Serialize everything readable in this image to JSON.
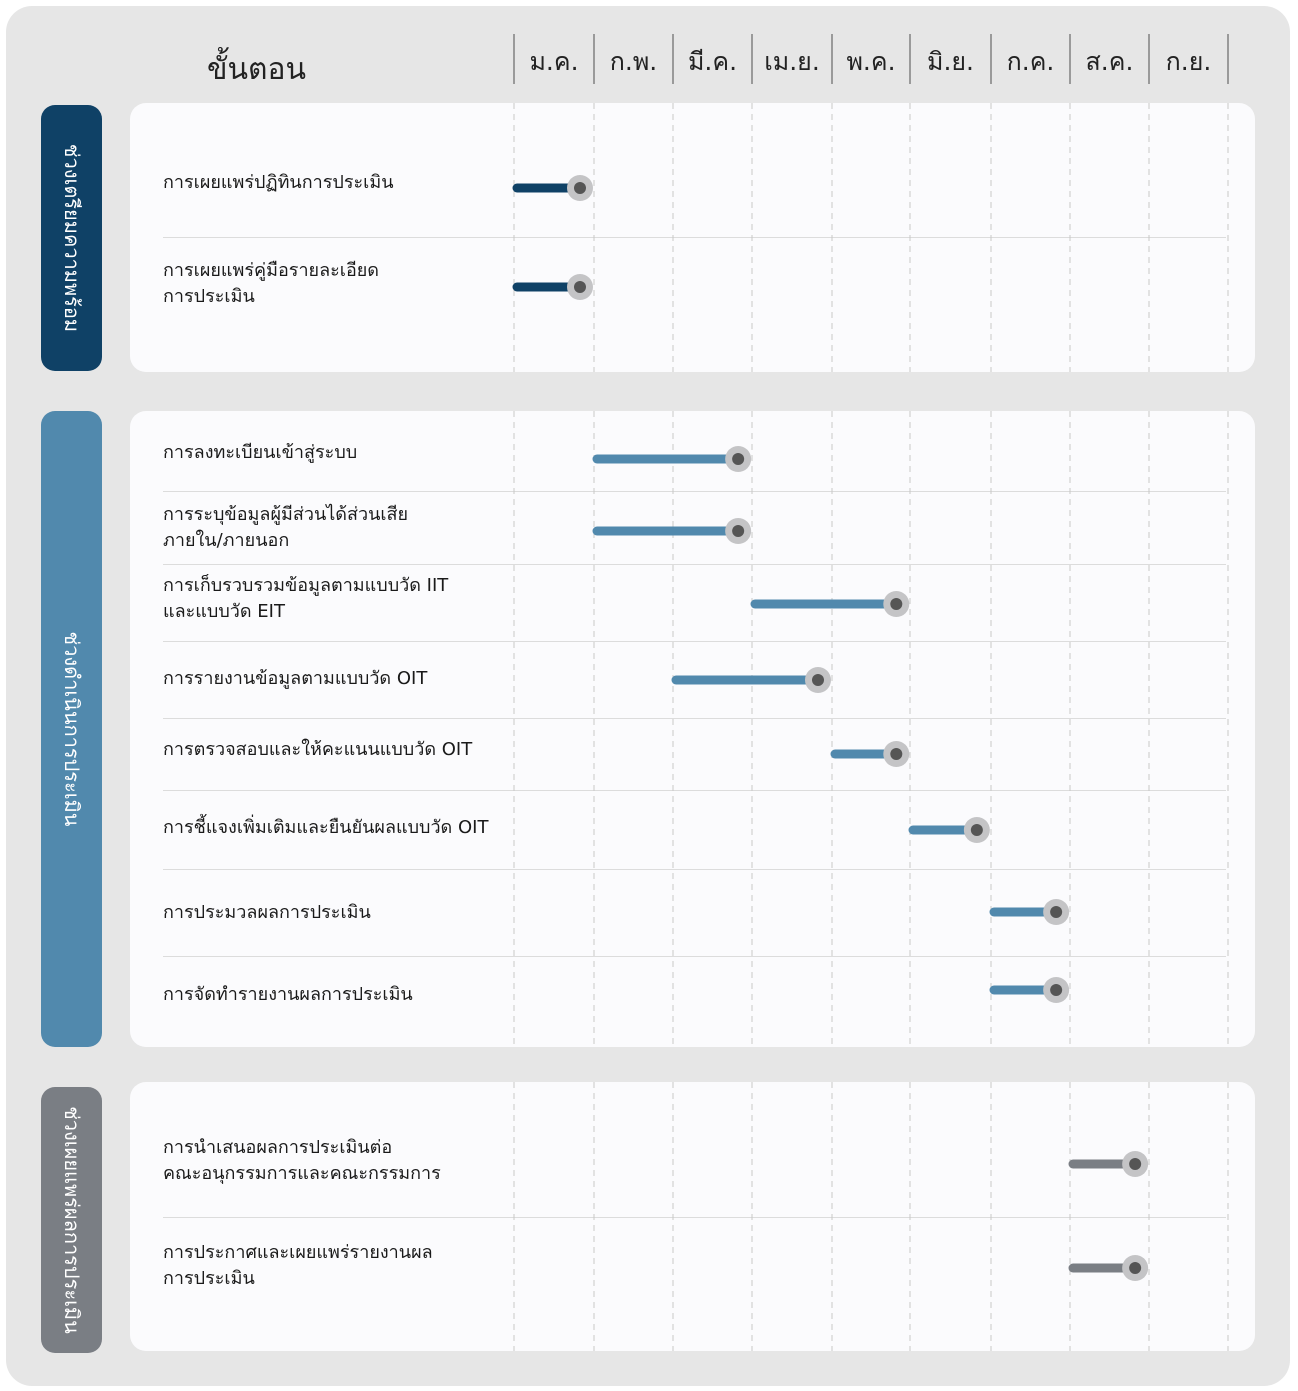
{
  "header": {
    "steps_label": "ขั้นตอน"
  },
  "chart_data": {
    "type": "gantt",
    "categories": [
      "ม.ค.",
      "ก.พ.",
      "มี.ค.",
      "เม.ย.",
      "พ.ค.",
      "มิ.ย.",
      "ก.ค.",
      "ส.ค.",
      "ก.ย."
    ],
    "phases": [
      {
        "name": "ช่วงเตรียมความพร้อม",
        "color": "#0f4166",
        "tasks": [
          {
            "label_lines": [
              "การเผยแพร่ปฏิทินการประเมิน"
            ],
            "start": 0.0,
            "end": 0.85
          },
          {
            "label_lines": [
              "การเผยแพร่คู่มือรายละเอียด",
              "การประเมิน"
            ],
            "start": 0.0,
            "end": 0.85
          }
        ]
      },
      {
        "name": "ช่วงดำเนินการประเมิน",
        "color": "#5189ad",
        "tasks": [
          {
            "label_lines": [
              "การลงทะเบียนเข้าสู่ระบบ"
            ],
            "start": 1.0,
            "end": 2.85
          },
          {
            "label_lines": [
              "การระบุข้อมูลผู้มีส่วนได้ส่วนเสีย",
              "ภายใน/ภายนอก"
            ],
            "start": 1.0,
            "end": 2.85
          },
          {
            "label_lines": [
              "การเก็บรวบรวมข้อมูลตามแบบวัด IIT",
              "และแบบวัด EIT"
            ],
            "start": 3.0,
            "end": 4.85
          },
          {
            "label_lines": [
              "การรายงานข้อมูลตามแบบวัด OIT"
            ],
            "start": 2.0,
            "end": 3.85
          },
          {
            "label_lines": [
              "การตรวจสอบและให้คะแนนแบบวัด OIT"
            ],
            "start": 4.0,
            "end": 4.85
          },
          {
            "label_lines": [
              "การชี้แจงเพิ่มเติมและยืนยันผลแบบวัด OIT"
            ],
            "start": 5.0,
            "end": 5.85
          },
          {
            "label_lines": [
              "การประมวลผลการประเมิน"
            ],
            "start": 6.0,
            "end": 6.85
          },
          {
            "label_lines": [
              "การจัดทำรายงานผลการประเมิน"
            ],
            "start": 6.0,
            "end": 6.85
          }
        ]
      },
      {
        "name": "ช่วงเผยแพร่ผลการประเมิน",
        "color": "#7a7e84",
        "tasks": [
          {
            "label_lines": [
              "การนำเสนอผลการประเมินต่อ",
              "คณะอนุกรรมการและคณะกรรมการ"
            ],
            "start": 7.0,
            "end": 7.85
          },
          {
            "label_lines": [
              "การประกาศและเผยแพร่รายงานผล",
              "การประเมิน"
            ],
            "start": 7.0,
            "end": 7.85
          }
        ]
      }
    ],
    "grid": true,
    "knob_color": "#555555",
    "knob_ring_color": "#c4c4c6"
  }
}
